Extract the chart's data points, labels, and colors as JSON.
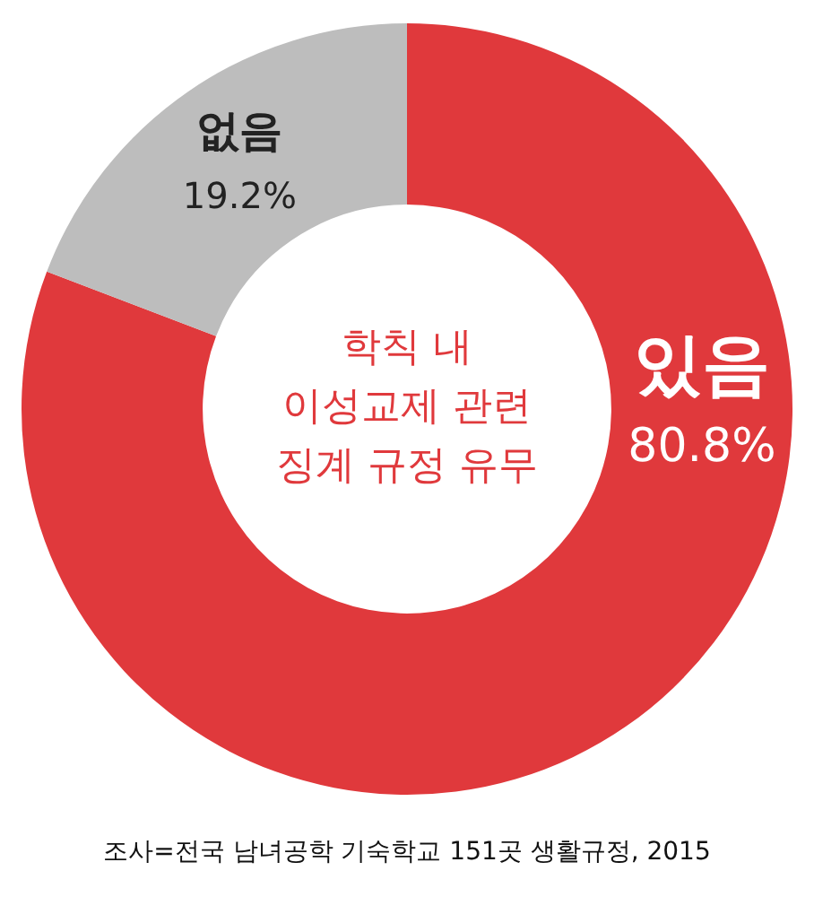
{
  "chart_data": {
    "type": "donut",
    "title": "학칙 내\n이성교제 관련\n징계 규정 유무",
    "categories": [
      "있음",
      "없음"
    ],
    "values": [
      80.8,
      19.2
    ],
    "colors": [
      "#e0393c",
      "#bdbdbd"
    ],
    "value_labels": [
      "80.8%",
      "19.2%"
    ],
    "legend": false,
    "annotations": [
      "조사=전국 남녀공학 기숙학교 151곳 생활규정, 2015"
    ]
  }
}
